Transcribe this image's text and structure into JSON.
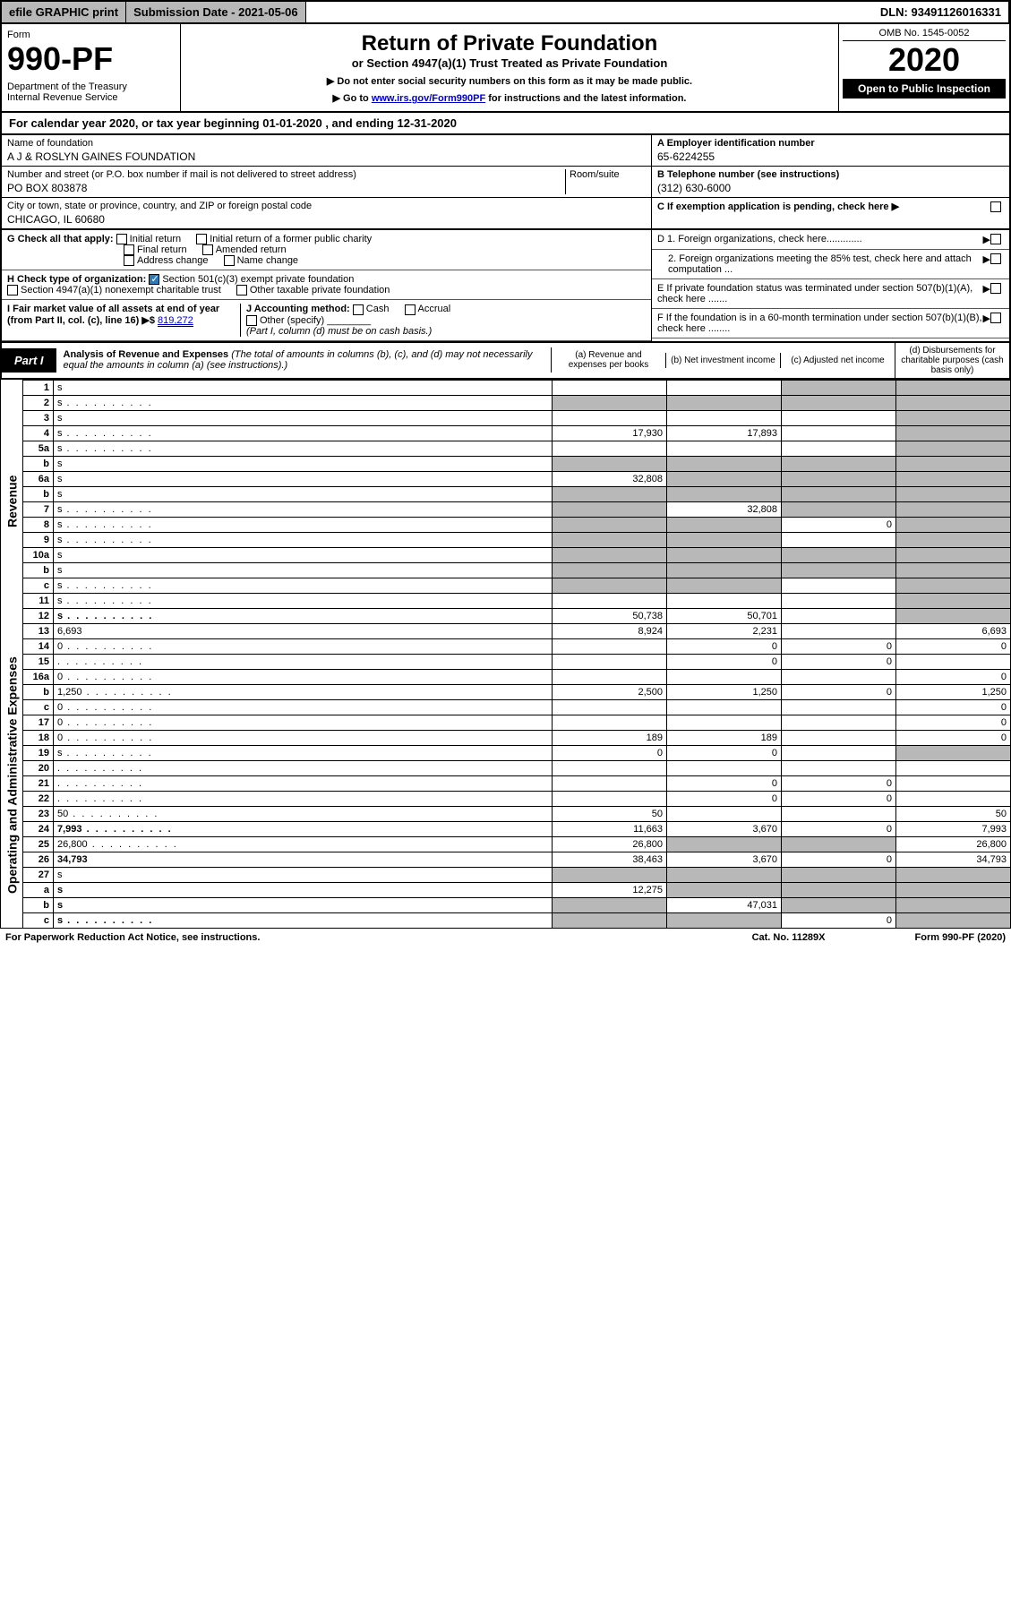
{
  "topbar": {
    "efile": "efile GRAPHIC print",
    "subdate_label": "Submission Date - 2021-05-06",
    "dln": "DLN: 93491126016331"
  },
  "header": {
    "form_label": "Form",
    "form_number": "990-PF",
    "dept": "Department of the Treasury\nInternal Revenue Service",
    "title": "Return of Private Foundation",
    "subtitle": "or Section 4947(a)(1) Trust Treated as Private Foundation",
    "note1": "▶ Do not enter social security numbers on this form as it may be made public.",
    "note2_pre": "▶ Go to ",
    "note2_link": "www.irs.gov/Form990PF",
    "note2_post": " for instructions and the latest information.",
    "omb": "OMB No. 1545-0052",
    "year": "2020",
    "open": "Open to Public Inspection"
  },
  "cy": "For calendar year 2020, or tax year beginning 01-01-2020                          , and ending 12-31-2020",
  "info": {
    "name_label": "Name of foundation",
    "name": "A J & ROSLYN GAINES FOUNDATION",
    "addr_label": "Number and street (or P.O. box number if mail is not delivered to street address)",
    "room_label": "Room/suite",
    "addr": "PO BOX 803878",
    "city_label": "City or town, state or province, country, and ZIP or foreign postal code",
    "city": "CHICAGO, IL  60680",
    "ein_label": "A Employer identification number",
    "ein": "65-6224255",
    "tel_label": "B Telephone number (see instructions)",
    "tel": "(312) 630-6000",
    "c_label": "C  If exemption application is pending, check here ▶"
  },
  "checks": {
    "g_label": "G Check all that apply:",
    "g1": "Initial return",
    "g2": "Initial return of a former public charity",
    "g3": "Final return",
    "g4": "Amended return",
    "g5": "Address change",
    "g6": "Name change",
    "h_label": "H Check type of organization:",
    "h1": "Section 501(c)(3) exempt private foundation",
    "h2": "Section 4947(a)(1) nonexempt charitable trust",
    "h3": "Other taxable private foundation",
    "i_label": "I Fair market value of all assets at end of year (from Part II, col. (c), line 16) ▶$ ",
    "i_val": "819,272",
    "j_label": "J Accounting method:",
    "j1": "Cash",
    "j2": "Accrual",
    "j3": "Other (specify)",
    "j_note": "(Part I, column (d) must be on cash basis.)",
    "d1": "D 1. Foreign organizations, check here.............",
    "d2": "2. Foreign organizations meeting the 85% test, check here and attach computation ...",
    "e": "E  If private foundation status was terminated under section 507(b)(1)(A), check here .......",
    "f": "F  If the foundation is in a 60-month termination under section 507(b)(1)(B), check here ........"
  },
  "part1": {
    "label": "Part I",
    "title": "Analysis of Revenue and Expenses",
    "title_note": " (The total of amounts in columns (b), (c), and (d) may not necessarily equal the amounts in column (a) (see instructions).)",
    "col_a": "(a)   Revenue and expenses per books",
    "col_b": "(b)  Net investment income",
    "col_c": "(c)  Adjusted net income",
    "col_d": "(d)  Disbursements for charitable purposes (cash basis only)"
  },
  "rows": [
    {
      "n": "1",
      "d": "s",
      "a": "",
      "b": "",
      "c": "s"
    },
    {
      "n": "2",
      "d": "s",
      "a": "s",
      "b": "s",
      "c": "s",
      "dots": true
    },
    {
      "n": "3",
      "d": "s",
      "a": "",
      "b": "",
      "c": ""
    },
    {
      "n": "4",
      "d": "s",
      "a": "17,930",
      "b": "17,893",
      "c": "",
      "dots": true
    },
    {
      "n": "5a",
      "d": "s",
      "a": "",
      "b": "",
      "c": "",
      "dots": true
    },
    {
      "n": "b",
      "d": "s",
      "a": "s",
      "b": "s",
      "c": "s"
    },
    {
      "n": "6a",
      "d": "s",
      "a": "32,808",
      "b": "s",
      "c": "s"
    },
    {
      "n": "b",
      "d": "s",
      "a": "s",
      "b": "s",
      "c": "s"
    },
    {
      "n": "7",
      "d": "s",
      "a": "s",
      "b": "32,808",
      "c": "s",
      "dots": true
    },
    {
      "n": "8",
      "d": "s",
      "a": "s",
      "b": "s",
      "c": "0",
      "dots": true
    },
    {
      "n": "9",
      "d": "s",
      "a": "s",
      "b": "s",
      "c": "",
      "dots": true
    },
    {
      "n": "10a",
      "d": "s",
      "a": "s",
      "b": "s",
      "c": "s"
    },
    {
      "n": "b",
      "d": "s",
      "a": "s",
      "b": "s",
      "c": "s"
    },
    {
      "n": "c",
      "d": "s",
      "a": "s",
      "b": "s",
      "c": "",
      "dots": true
    },
    {
      "n": "11",
      "d": "s",
      "a": "",
      "b": "",
      "c": "",
      "dots": true
    },
    {
      "n": "12",
      "d": "s",
      "a": "50,738",
      "b": "50,701",
      "c": "",
      "bold": true,
      "dots": true
    },
    {
      "n": "13",
      "d": "6,693",
      "a": "8,924",
      "b": "2,231",
      "c": ""
    },
    {
      "n": "14",
      "d": "0",
      "a": "",
      "b": "0",
      "c": "0",
      "dots": true
    },
    {
      "n": "15",
      "d": "",
      "a": "",
      "b": "0",
      "c": "0",
      "dots": true
    },
    {
      "n": "16a",
      "d": "0",
      "a": "",
      "b": "",
      "c": "",
      "dots": true
    },
    {
      "n": "b",
      "d": "1,250",
      "a": "2,500",
      "b": "1,250",
      "c": "0",
      "dots": true
    },
    {
      "n": "c",
      "d": "0",
      "a": "",
      "b": "",
      "c": "",
      "dots": true
    },
    {
      "n": "17",
      "d": "0",
      "a": "",
      "b": "",
      "c": "",
      "dots": true
    },
    {
      "n": "18",
      "d": "0",
      "a": "189",
      "b": "189",
      "c": "",
      "dots": true
    },
    {
      "n": "19",
      "d": "s",
      "a": "0",
      "b": "0",
      "c": "",
      "dots": true
    },
    {
      "n": "20",
      "d": "",
      "a": "",
      "b": "",
      "c": "",
      "dots": true
    },
    {
      "n": "21",
      "d": "",
      "a": "",
      "b": "0",
      "c": "0",
      "dots": true
    },
    {
      "n": "22",
      "d": "",
      "a": "",
      "b": "0",
      "c": "0",
      "dots": true
    },
    {
      "n": "23",
      "d": "50",
      "a": "50",
      "b": "",
      "c": "",
      "dots": true
    },
    {
      "n": "24",
      "d": "7,993",
      "a": "11,663",
      "b": "3,670",
      "c": "0",
      "bold": true,
      "dots": true
    },
    {
      "n": "25",
      "d": "26,800",
      "a": "26,800",
      "b": "s",
      "c": "s",
      "dots": true
    },
    {
      "n": "26",
      "d": "34,793",
      "a": "38,463",
      "b": "3,670",
      "c": "0",
      "bold": true
    },
    {
      "n": "27",
      "d": "s",
      "a": "s",
      "b": "s",
      "c": "s"
    },
    {
      "n": "a",
      "d": "s",
      "a": "12,275",
      "b": "s",
      "c": "s",
      "bold": true
    },
    {
      "n": "b",
      "d": "s",
      "a": "s",
      "b": "47,031",
      "c": "s",
      "bold": true
    },
    {
      "n": "c",
      "d": "s",
      "a": "s",
      "b": "s",
      "c": "0",
      "bold": true,
      "dots": true
    }
  ],
  "section_labels": {
    "revenue": "Revenue",
    "opex": "Operating and Administrative Expenses"
  },
  "footer": {
    "left": "For Paperwork Reduction Act Notice, see instructions.",
    "mid": "Cat. No. 11289X",
    "right": "Form 990-PF (2020)"
  },
  "colors": {
    "shade": "#b8b8b8",
    "link": "#0000cc",
    "check": "#2b7bbb"
  }
}
